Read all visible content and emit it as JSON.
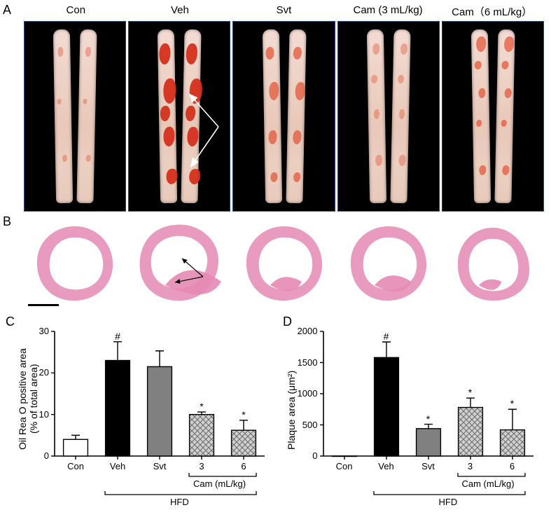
{
  "columns": [
    {
      "key": "con",
      "label": "Con"
    },
    {
      "key": "veh",
      "label": "Veh"
    },
    {
      "key": "svt",
      "label": "Svt"
    },
    {
      "key": "cam3",
      "label": "Cam (3 mL/kg)"
    },
    {
      "key": "cam6",
      "label": "Cam（6 mL/kg）"
    }
  ],
  "panels": {
    "A": "A",
    "B": "B",
    "C": "C",
    "D": "D"
  },
  "aorta_row": {
    "specimen_base_color": "#ebd2c5",
    "lesion_color": "#d94a2e",
    "background_color": "#000000",
    "border_color": "#2a4570",
    "variants": {
      "con": {
        "intensity": "low",
        "spots": [
          [
            40,
            10,
            8,
            14
          ],
          [
            55,
            72,
            7,
            10
          ],
          [
            30,
            40,
            6,
            8
          ]
        ]
      },
      "veh": {
        "intensity": "high",
        "spots": [
          [
            20,
            8,
            16,
            30
          ],
          [
            42,
            28,
            18,
            36
          ],
          [
            36,
            56,
            16,
            28
          ],
          [
            50,
            80,
            16,
            22
          ],
          [
            22,
            44,
            14,
            22
          ]
        ]
      },
      "svt": {
        "intensity": "mid",
        "spots": [
          [
            30,
            10,
            12,
            18
          ],
          [
            46,
            30,
            14,
            26
          ],
          [
            40,
            58,
            12,
            20
          ],
          [
            48,
            82,
            10,
            14
          ]
        ]
      },
      "cam3": {
        "intensity": "low",
        "spots": [
          [
            46,
            8,
            10,
            16
          ],
          [
            34,
            26,
            9,
            12
          ],
          [
            48,
            46,
            8,
            14
          ],
          [
            52,
            72,
            10,
            16
          ]
        ]
      },
      "cam6": {
        "intensity": "mid",
        "spots": [
          [
            44,
            4,
            14,
            22
          ],
          [
            30,
            18,
            10,
            12
          ],
          [
            50,
            34,
            10,
            14
          ],
          [
            34,
            52,
            8,
            10
          ],
          [
            48,
            78,
            10,
            14
          ]
        ]
      }
    },
    "veh_arrows": true
  },
  "section_row": {
    "he_pink": "#e58ab4",
    "he_purple": "#7d5a98",
    "scale_bar": true,
    "shapes": {
      "con": {
        "plaque": 0.0,
        "outline": "round"
      },
      "veh": {
        "plaque": 1.0,
        "outline": "irregular",
        "arrows": true
      },
      "svt": {
        "plaque": 0.3,
        "outline": "round"
      },
      "cam3": {
        "plaque": 0.45,
        "outline": "round"
      },
      "cam6": {
        "plaque": 0.05,
        "outline": "triangle"
      }
    }
  },
  "chartC": {
    "type": "bar",
    "title": null,
    "ylabel_line1": "Oil Rea O positive area",
    "ylabel_line2": "(% of total area)",
    "ylim": [
      0,
      30
    ],
    "ytick_step": 10,
    "label_fontsize": 14,
    "tick_fontsize": 13,
    "bar_width": 0.58,
    "axis_color": "#000000",
    "background_color": "#ffffff",
    "groups": [
      "Con",
      "Veh",
      "Svt",
      "3",
      "6"
    ],
    "sub_bracket_label": "Cam (mL/kg)",
    "hfd_bracket_label": "HFD",
    "bars": [
      {
        "value": 4.0,
        "err": 1.0,
        "fill": "#ffffff",
        "pattern": "none",
        "sig": ""
      },
      {
        "value": 23.0,
        "err": 4.5,
        "fill": "#000000",
        "pattern": "none",
        "sig": "#"
      },
      {
        "value": 21.5,
        "err": 3.8,
        "fill": "#808080",
        "pattern": "none",
        "sig": ""
      },
      {
        "value": 10.0,
        "err": 0.6,
        "fill": "#9a9a9a",
        "pattern": "cross",
        "sig": "*"
      },
      {
        "value": 6.2,
        "err": 2.4,
        "fill": "#9a9a9a",
        "pattern": "cross",
        "sig": "*"
      }
    ]
  },
  "chartD": {
    "type": "bar",
    "title": null,
    "ylabel_line1": "Plaque area (μm²)",
    "ylabel_line2": "",
    "ylim": [
      0,
      2000
    ],
    "ytick_step": 500,
    "label_fontsize": 14,
    "tick_fontsize": 13,
    "bar_width": 0.58,
    "axis_color": "#000000",
    "background_color": "#ffffff",
    "groups": [
      "Con",
      "Veh",
      "Svt",
      "3",
      "6"
    ],
    "sub_bracket_label": "Cam (mL/kg)",
    "hfd_bracket_label": "HFD",
    "bars": [
      {
        "value": 0,
        "err": 0,
        "fill": "#ffffff",
        "pattern": "none",
        "sig": ""
      },
      {
        "value": 1580,
        "err": 250,
        "fill": "#000000",
        "pattern": "none",
        "sig": "#"
      },
      {
        "value": 440,
        "err": 70,
        "fill": "#808080",
        "pattern": "none",
        "sig": "*"
      },
      {
        "value": 780,
        "err": 150,
        "fill": "#9a9a9a",
        "pattern": "cross",
        "sig": "*"
      },
      {
        "value": 420,
        "err": 330,
        "fill": "#9a9a9a",
        "pattern": "cross",
        "sig": "*"
      }
    ]
  }
}
